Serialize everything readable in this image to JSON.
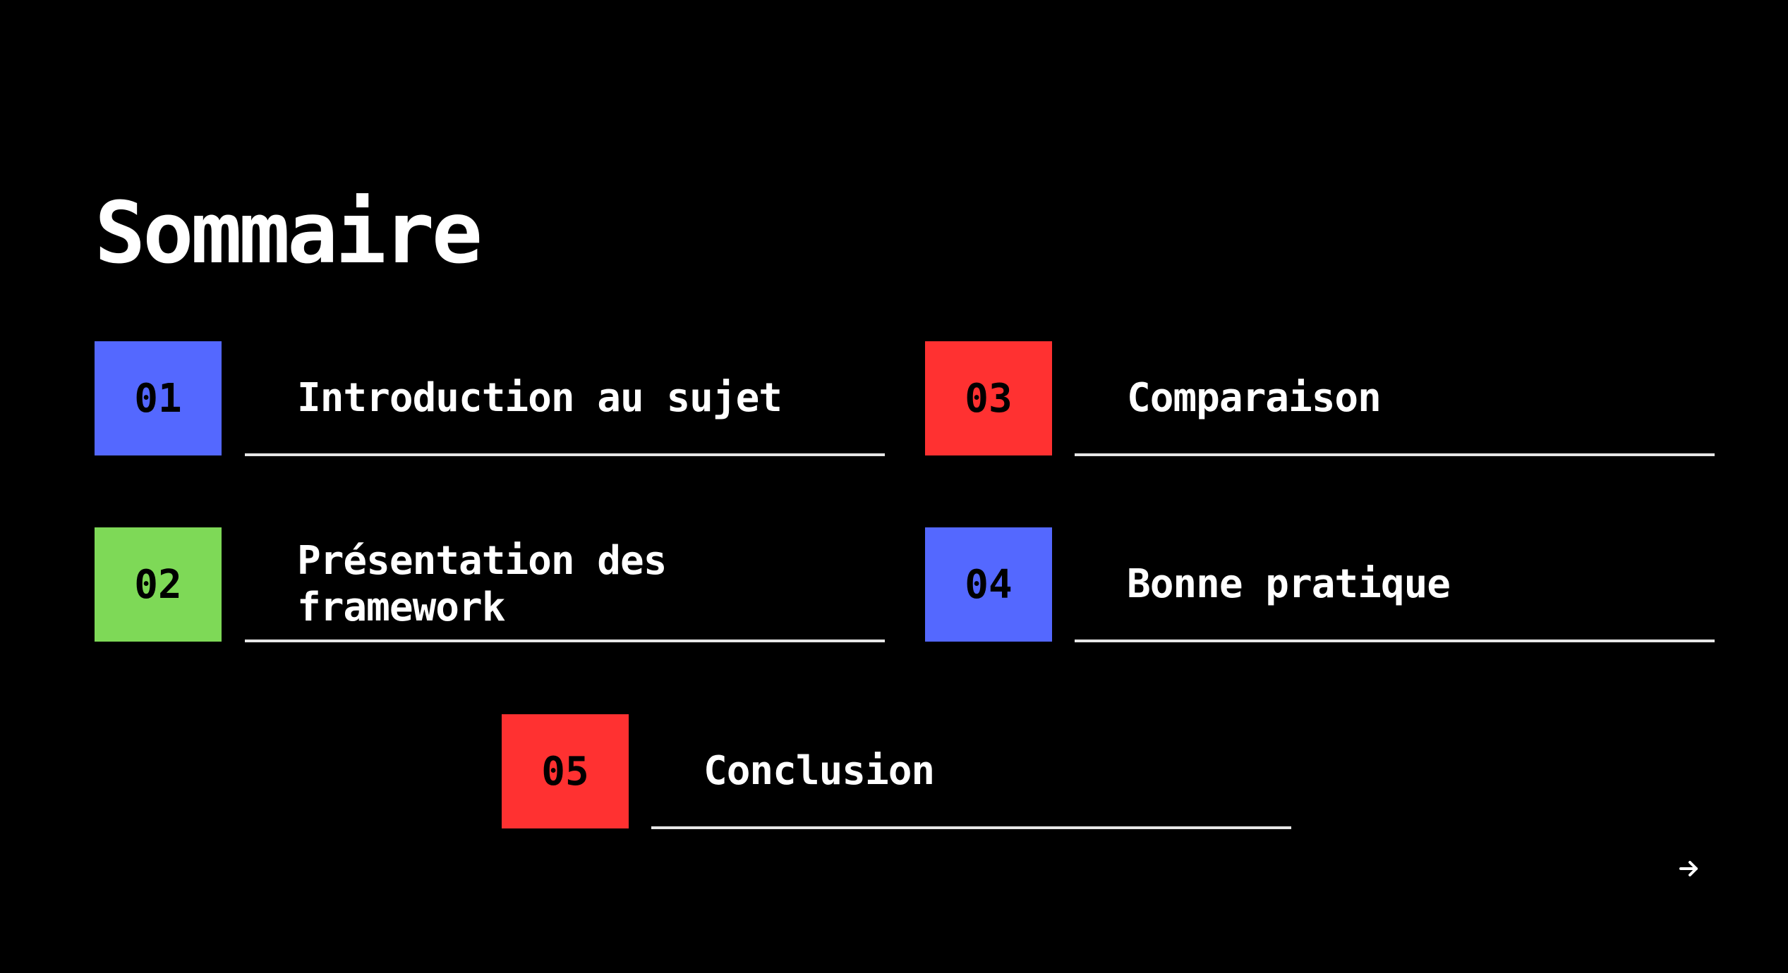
{
  "slide": {
    "title": "Sommaire",
    "items": [
      {
        "number": "01",
        "label": "Introduction au sujet",
        "color": "#5468ff"
      },
      {
        "number": "02",
        "label": "Présentation des framework",
        "color": "#7ed957"
      },
      {
        "number": "03",
        "label": "Comparaison",
        "color": "#ff3131"
      },
      {
        "number": "04",
        "label": "Bonne pratique",
        "color": "#5468ff"
      },
      {
        "number": "05",
        "label": "Conclusion",
        "color": "#ff3131"
      }
    ],
    "next_icon": "arrow-right-icon"
  }
}
